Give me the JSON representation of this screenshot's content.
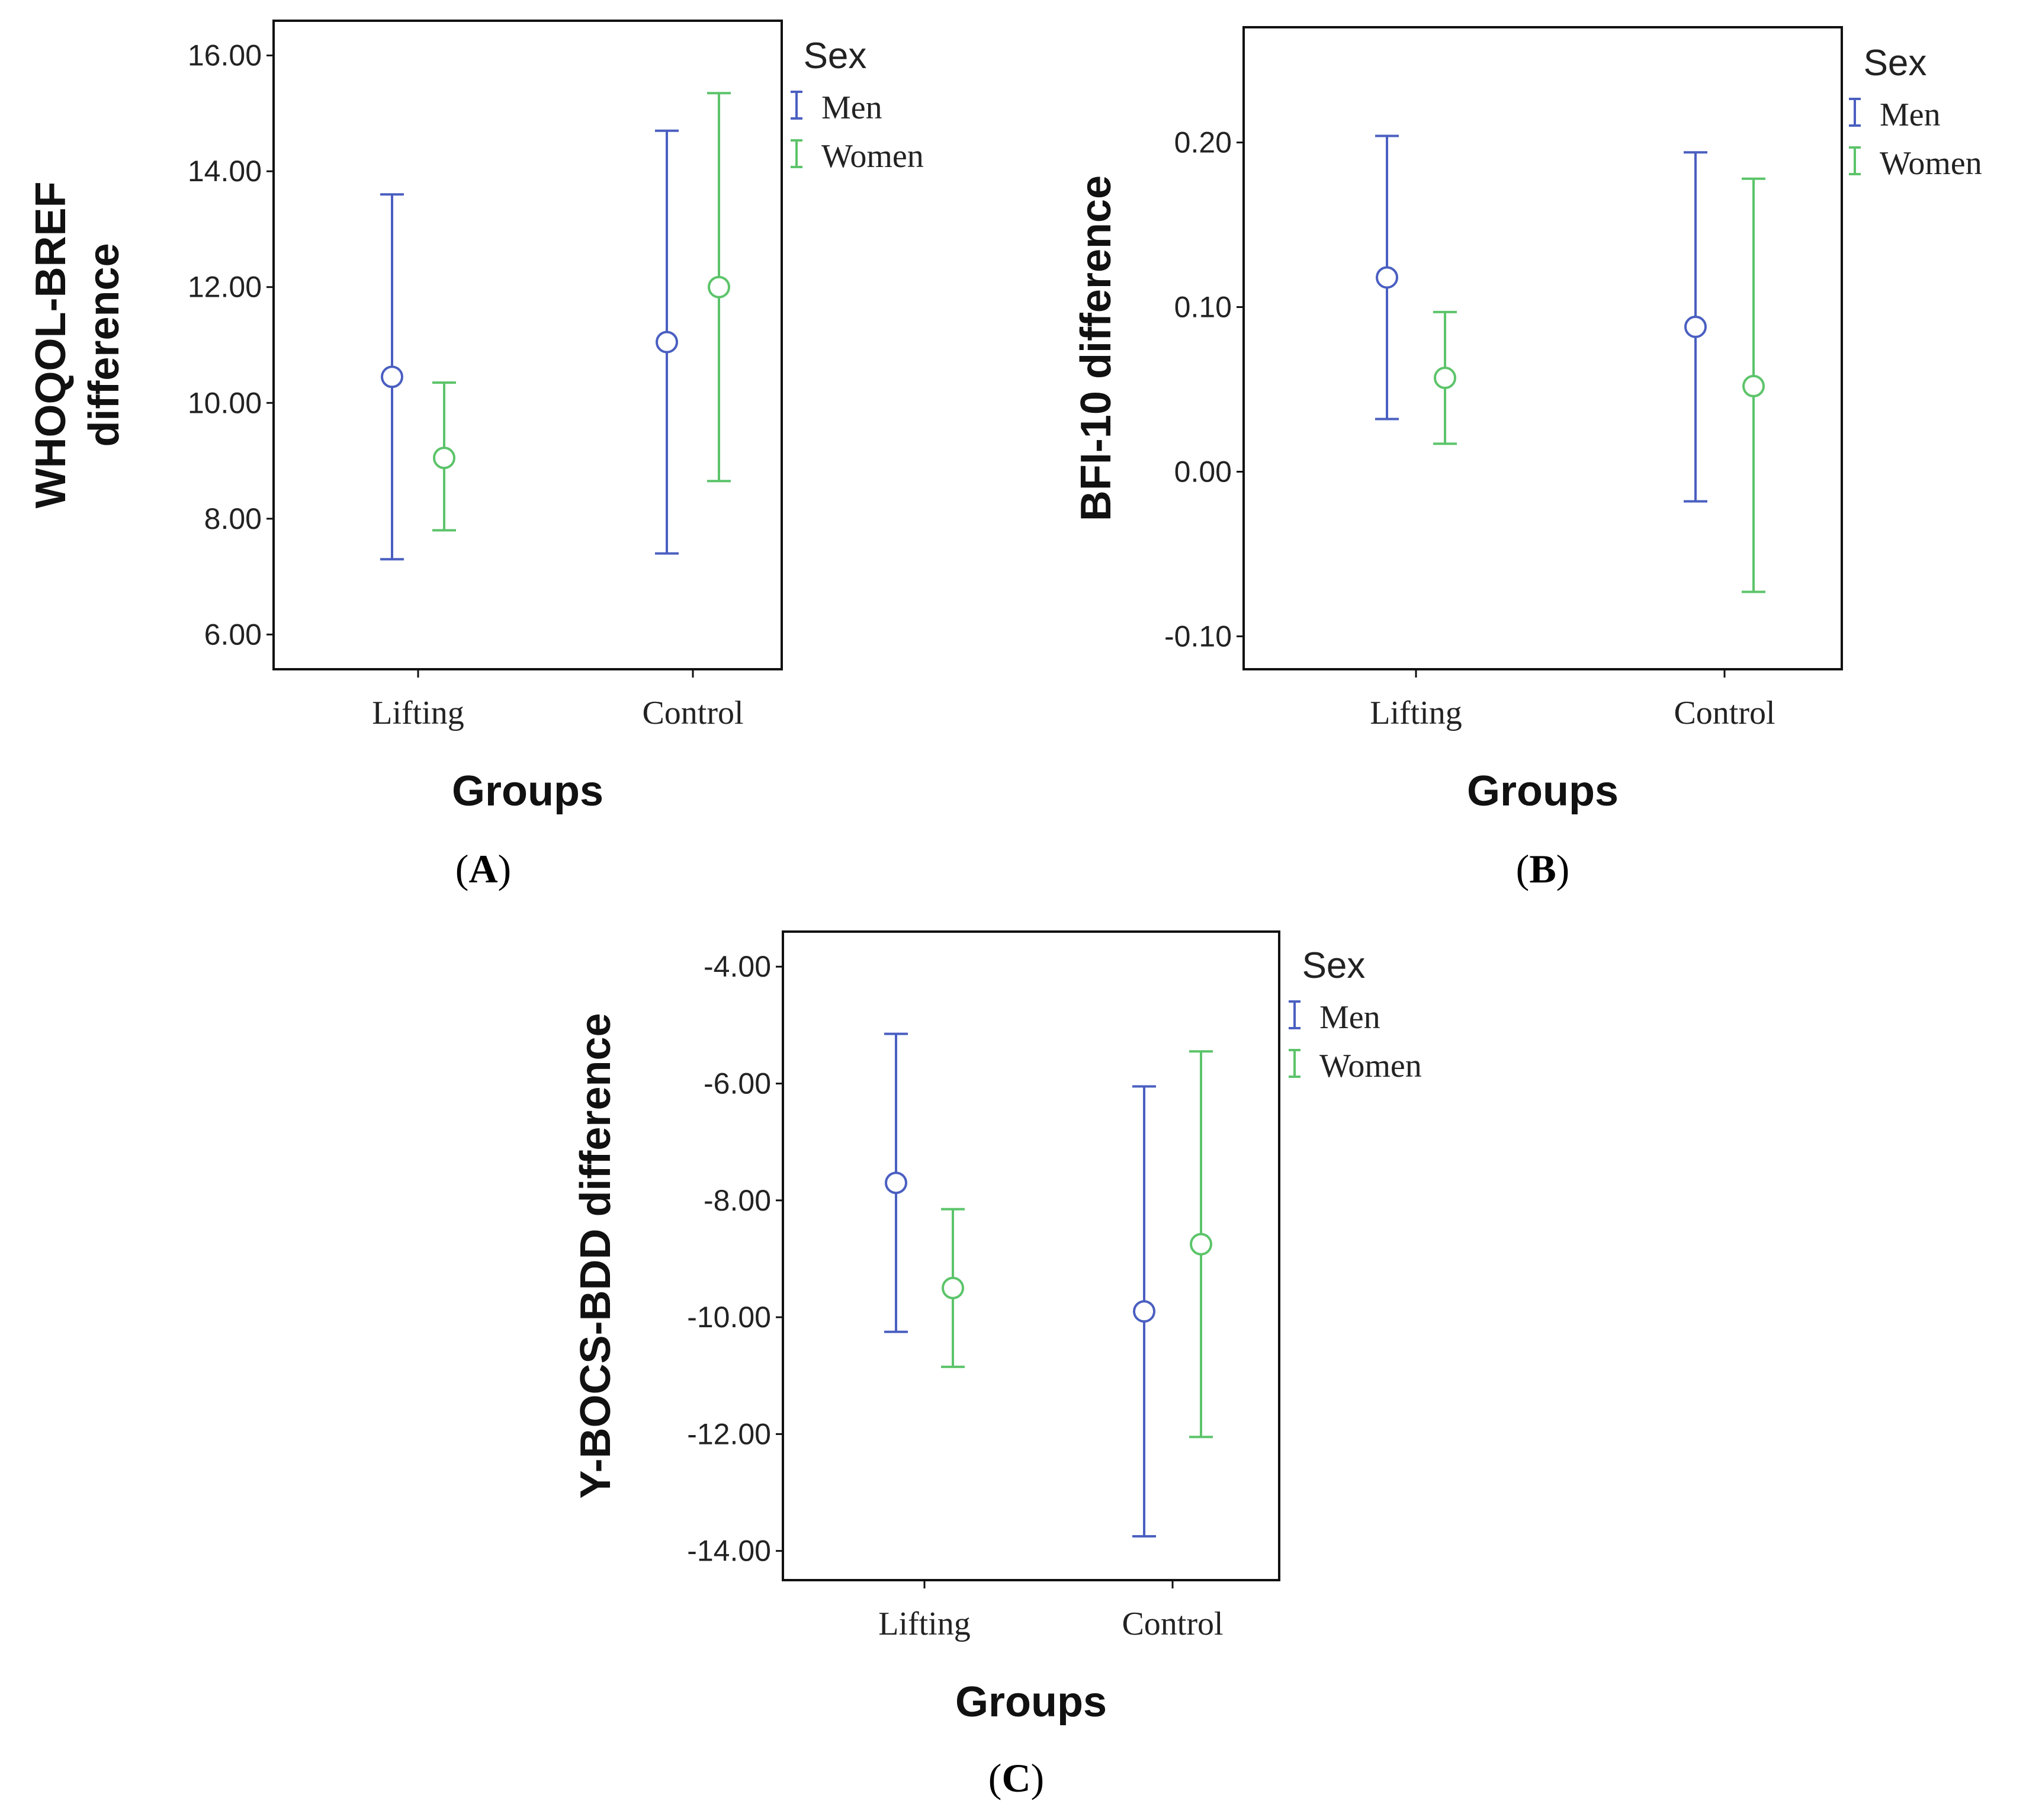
{
  "chart_data": [
    {
      "type": "errorbar",
      "panel": "A",
      "title": "",
      "xlabel": "Groups",
      "ylabel": [
        "WHOQOL-BREF",
        "difference"
      ],
      "categories": [
        "Lifting",
        "Control"
      ],
      "ylim": [
        5.4,
        16.6
      ],
      "yticks": [
        6,
        8,
        10,
        12,
        14,
        16
      ],
      "ytick_labels": [
        "6.00",
        "8.00",
        "10.00",
        "12.00",
        "14.00",
        "16.00"
      ],
      "legend": {
        "title": "Sex",
        "position": "outside-right-top"
      },
      "grid": false,
      "series": [
        {
          "name": "Men",
          "color": "#4a5fc1",
          "means": [
            10.45,
            11.05
          ],
          "lower": [
            7.3,
            7.4
          ],
          "upper": [
            13.6,
            14.7
          ]
        },
        {
          "name": "Women",
          "color": "#5cc46a",
          "means": [
            9.05,
            12.0
          ],
          "lower": [
            7.8,
            8.65
          ],
          "upper": [
            10.35,
            15.35
          ]
        }
      ]
    },
    {
      "type": "errorbar",
      "panel": "B",
      "title": "",
      "xlabel": "Groups",
      "ylabel": [
        "BFI-10 difference"
      ],
      "categories": [
        "Lifting",
        "Control"
      ],
      "ylim": [
        -0.12,
        0.27
      ],
      "yticks": [
        -0.1,
        0.0,
        0.1,
        0.2
      ],
      "ytick_labels": [
        "-0.10",
        "0.00",
        "0.10",
        "0.20"
      ],
      "legend": {
        "title": "Sex",
        "position": "outside-right-top"
      },
      "grid": false,
      "series": [
        {
          "name": "Men",
          "color": "#4a5fc1",
          "means": [
            0.118,
            0.088
          ],
          "lower": [
            0.032,
            -0.018
          ],
          "upper": [
            0.204,
            0.194
          ]
        },
        {
          "name": "Women",
          "color": "#5cc46a",
          "means": [
            0.057,
            0.052
          ],
          "lower": [
            0.017,
            -0.073
          ],
          "upper": [
            0.097,
            0.178
          ]
        }
      ]
    },
    {
      "type": "errorbar",
      "panel": "C",
      "title": "",
      "xlabel": "Groups",
      "ylabel": [
        "Y-BOCS-BDD difference"
      ],
      "categories": [
        "Lifting",
        "Control"
      ],
      "ylim": [
        -14.5,
        -3.4
      ],
      "yticks": [
        -14,
        -12,
        -10,
        -8,
        -6,
        -4
      ],
      "ytick_labels": [
        "-14.00",
        "-12.00",
        "-10.00",
        "-8.00",
        "-6.00",
        "-4.00"
      ],
      "legend": {
        "title": "Sex",
        "position": "outside-right-top"
      },
      "grid": false,
      "series": [
        {
          "name": "Men",
          "color": "#4a5fc1",
          "means": [
            -7.7,
            -9.9
          ],
          "lower": [
            -10.25,
            -13.75
          ],
          "upper": [
            -5.15,
            -6.05
          ]
        },
        {
          "name": "Women",
          "color": "#5cc46a",
          "means": [
            -9.5,
            -8.75
          ],
          "lower": [
            -10.85,
            -12.05
          ],
          "upper": [
            -8.15,
            -5.45
          ]
        }
      ]
    }
  ]
}
